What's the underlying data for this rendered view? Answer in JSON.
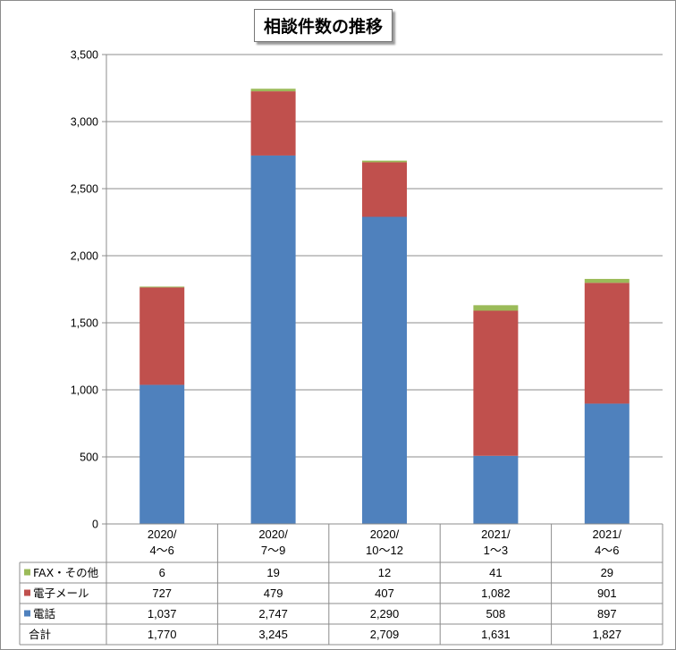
{
  "title": "相談件数の推移",
  "chart_data": {
    "type": "bar",
    "stacked": true,
    "title": "相談件数の推移",
    "categories": [
      [
        "2020/",
        "4〜6"
      ],
      [
        "2020/",
        "7〜9"
      ],
      [
        "2020/",
        "10〜12"
      ],
      [
        "2021/",
        "1〜3"
      ],
      [
        "2021/",
        "4〜6"
      ]
    ],
    "ylim": [
      0,
      3500
    ],
    "yticks": [
      0,
      500,
      1000,
      1500,
      2000,
      2500,
      3000,
      3500
    ],
    "ytick_labels": [
      "0",
      "500",
      "1,000",
      "1,500",
      "2,000",
      "2,500",
      "3,000",
      "3,500"
    ],
    "grid": true,
    "series": [
      {
        "name": "電話",
        "color": "#4f81bd",
        "values": [
          1037,
          2747,
          2290,
          508,
          897
        ],
        "labels": [
          "1,037",
          "2,747",
          "2,290",
          "508",
          "897"
        ]
      },
      {
        "name": "電子メール",
        "color": "#c0504d",
        "values": [
          727,
          479,
          407,
          1082,
          901
        ],
        "labels": [
          "727",
          "479",
          "407",
          "1,082",
          "901"
        ]
      },
      {
        "name": "FAX・その他",
        "color": "#9bbb59",
        "values": [
          6,
          19,
          12,
          41,
          29
        ],
        "labels": [
          "6",
          "19",
          "12",
          "41",
          "29"
        ]
      }
    ],
    "table_rows": [
      {
        "label": "FAX・その他",
        "series_index": 2
      },
      {
        "label": "電子メール",
        "series_index": 1
      },
      {
        "label": "電話",
        "series_index": 0
      },
      {
        "label": "合計",
        "series_index": null,
        "values": [
          "1,770",
          "3,245",
          "2,709",
          "1,631",
          "1,827"
        ]
      }
    ]
  }
}
